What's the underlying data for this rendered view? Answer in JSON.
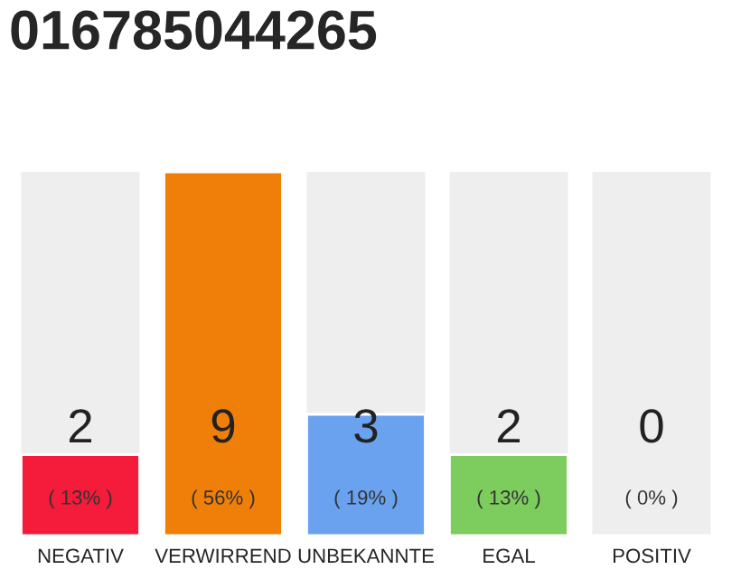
{
  "chart_data": {
    "type": "bar",
    "title": "016785044265",
    "categories": [
      "NEGATIV",
      "VERWIRREND",
      "UNBEKANNTE",
      "EGAL",
      "POSITIV"
    ],
    "values": [
      2,
      9,
      3,
      2,
      0
    ],
    "colors": [
      "#f41b3b",
      "#f07f0a",
      "#6aa2f0",
      "#7dcd5e",
      null
    ],
    "data_labels": true,
    "annotations": [
      "( 13% )",
      "( 56% )",
      "( 19% )",
      "( 13% )",
      "( 0% )"
    ],
    "grid": false,
    "legend": false
  }
}
